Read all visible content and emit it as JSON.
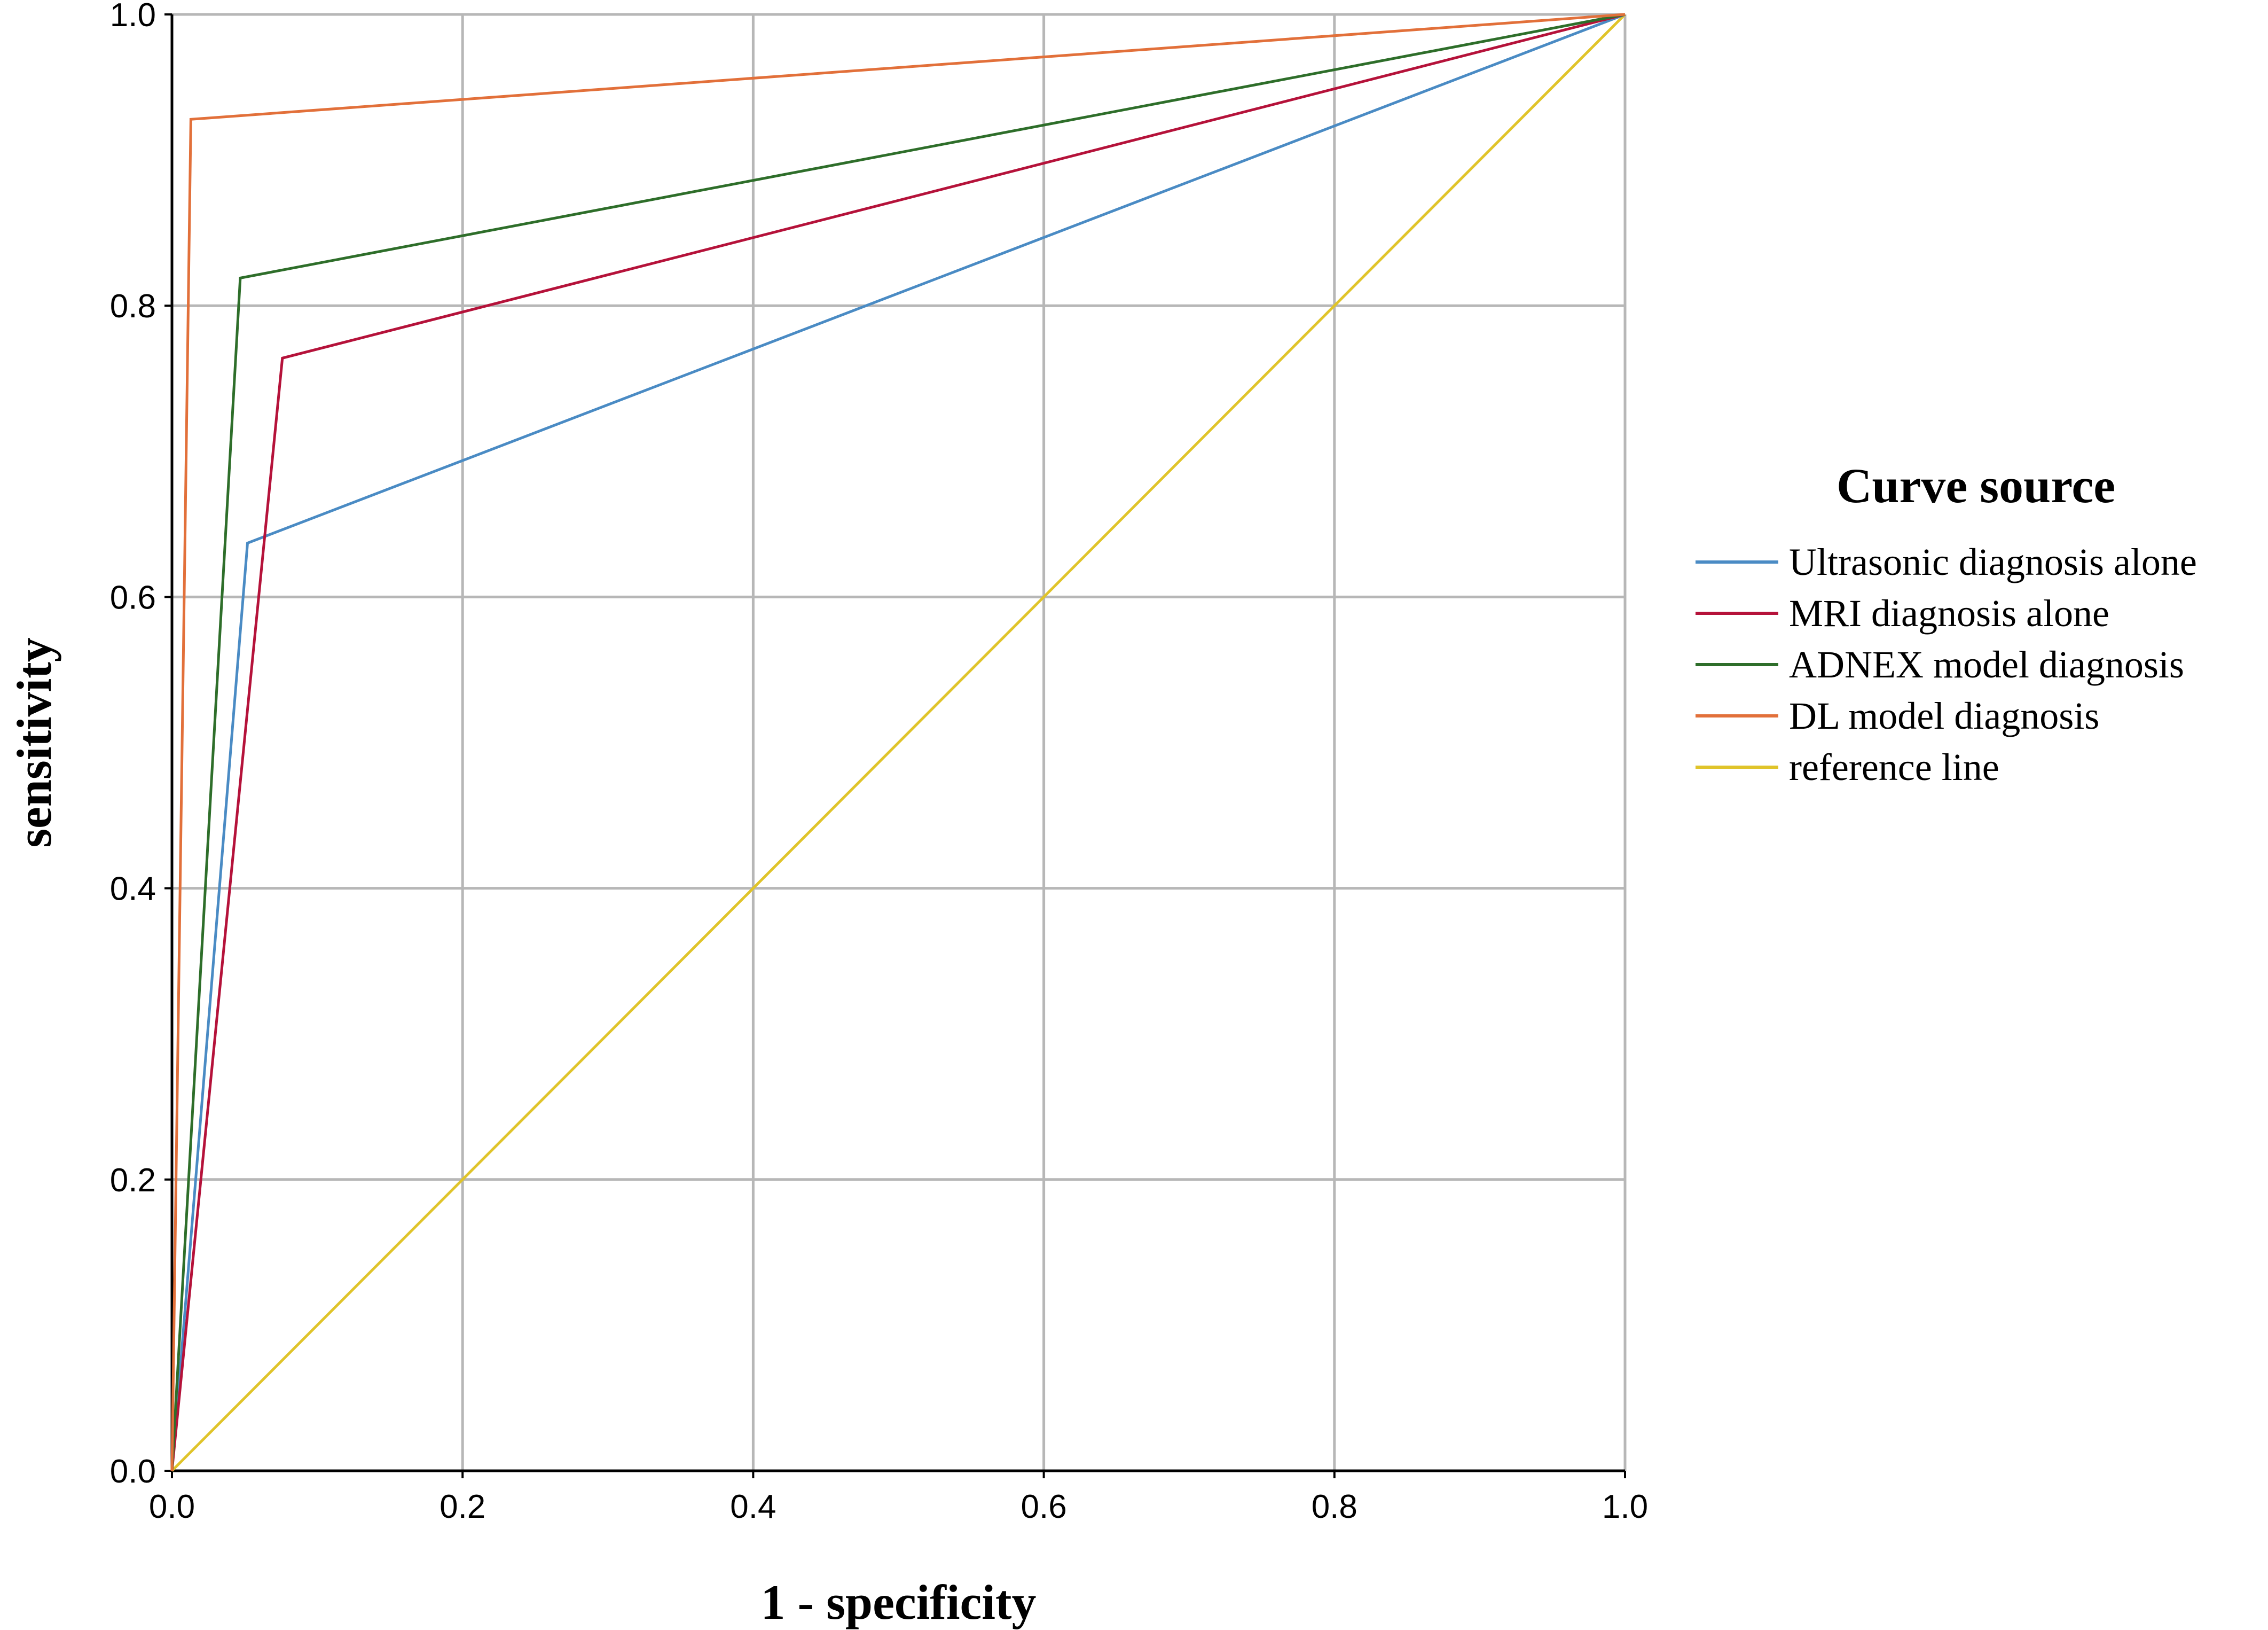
{
  "chart_data": {
    "type": "line",
    "title": "",
    "xlabel": "1 - specificity",
    "ylabel": "sensitivity",
    "xlim": [
      0,
      1
    ],
    "ylim": [
      0,
      1
    ],
    "xticks": [
      "0.0",
      "0.2",
      "0.4",
      "0.6",
      "0.8",
      "1.0"
    ],
    "yticks": [
      "0.0",
      "0.2",
      "0.4",
      "0.6",
      "0.8",
      "1.0"
    ],
    "grid": true,
    "legend": {
      "title": "Curve source",
      "placement": "right"
    },
    "series": [
      {
        "name": "Ultrasonic diagnosis alone",
        "color": "#4a8bc4",
        "x": [
          0,
          0.052,
          1
        ],
        "y": [
          0,
          0.637,
          1
        ]
      },
      {
        "name": "MRI diagnosis alone",
        "color": "#b5123a",
        "x": [
          0,
          0.076,
          1
        ],
        "y": [
          0,
          0.764,
          1
        ]
      },
      {
        "name": "ADNEX model diagnosis",
        "color": "#2e6e2a",
        "x": [
          0,
          0.047,
          1
        ],
        "y": [
          0,
          0.819,
          1
        ]
      },
      {
        "name": "DL model diagnosis",
        "color": "#e2703a",
        "x": [
          0,
          0.013,
          1
        ],
        "y": [
          0,
          0.928,
          1
        ]
      },
      {
        "name": "reference line",
        "color": "#e0c42a",
        "x": [
          0,
          1
        ],
        "y": [
          0,
          1
        ]
      }
    ]
  }
}
